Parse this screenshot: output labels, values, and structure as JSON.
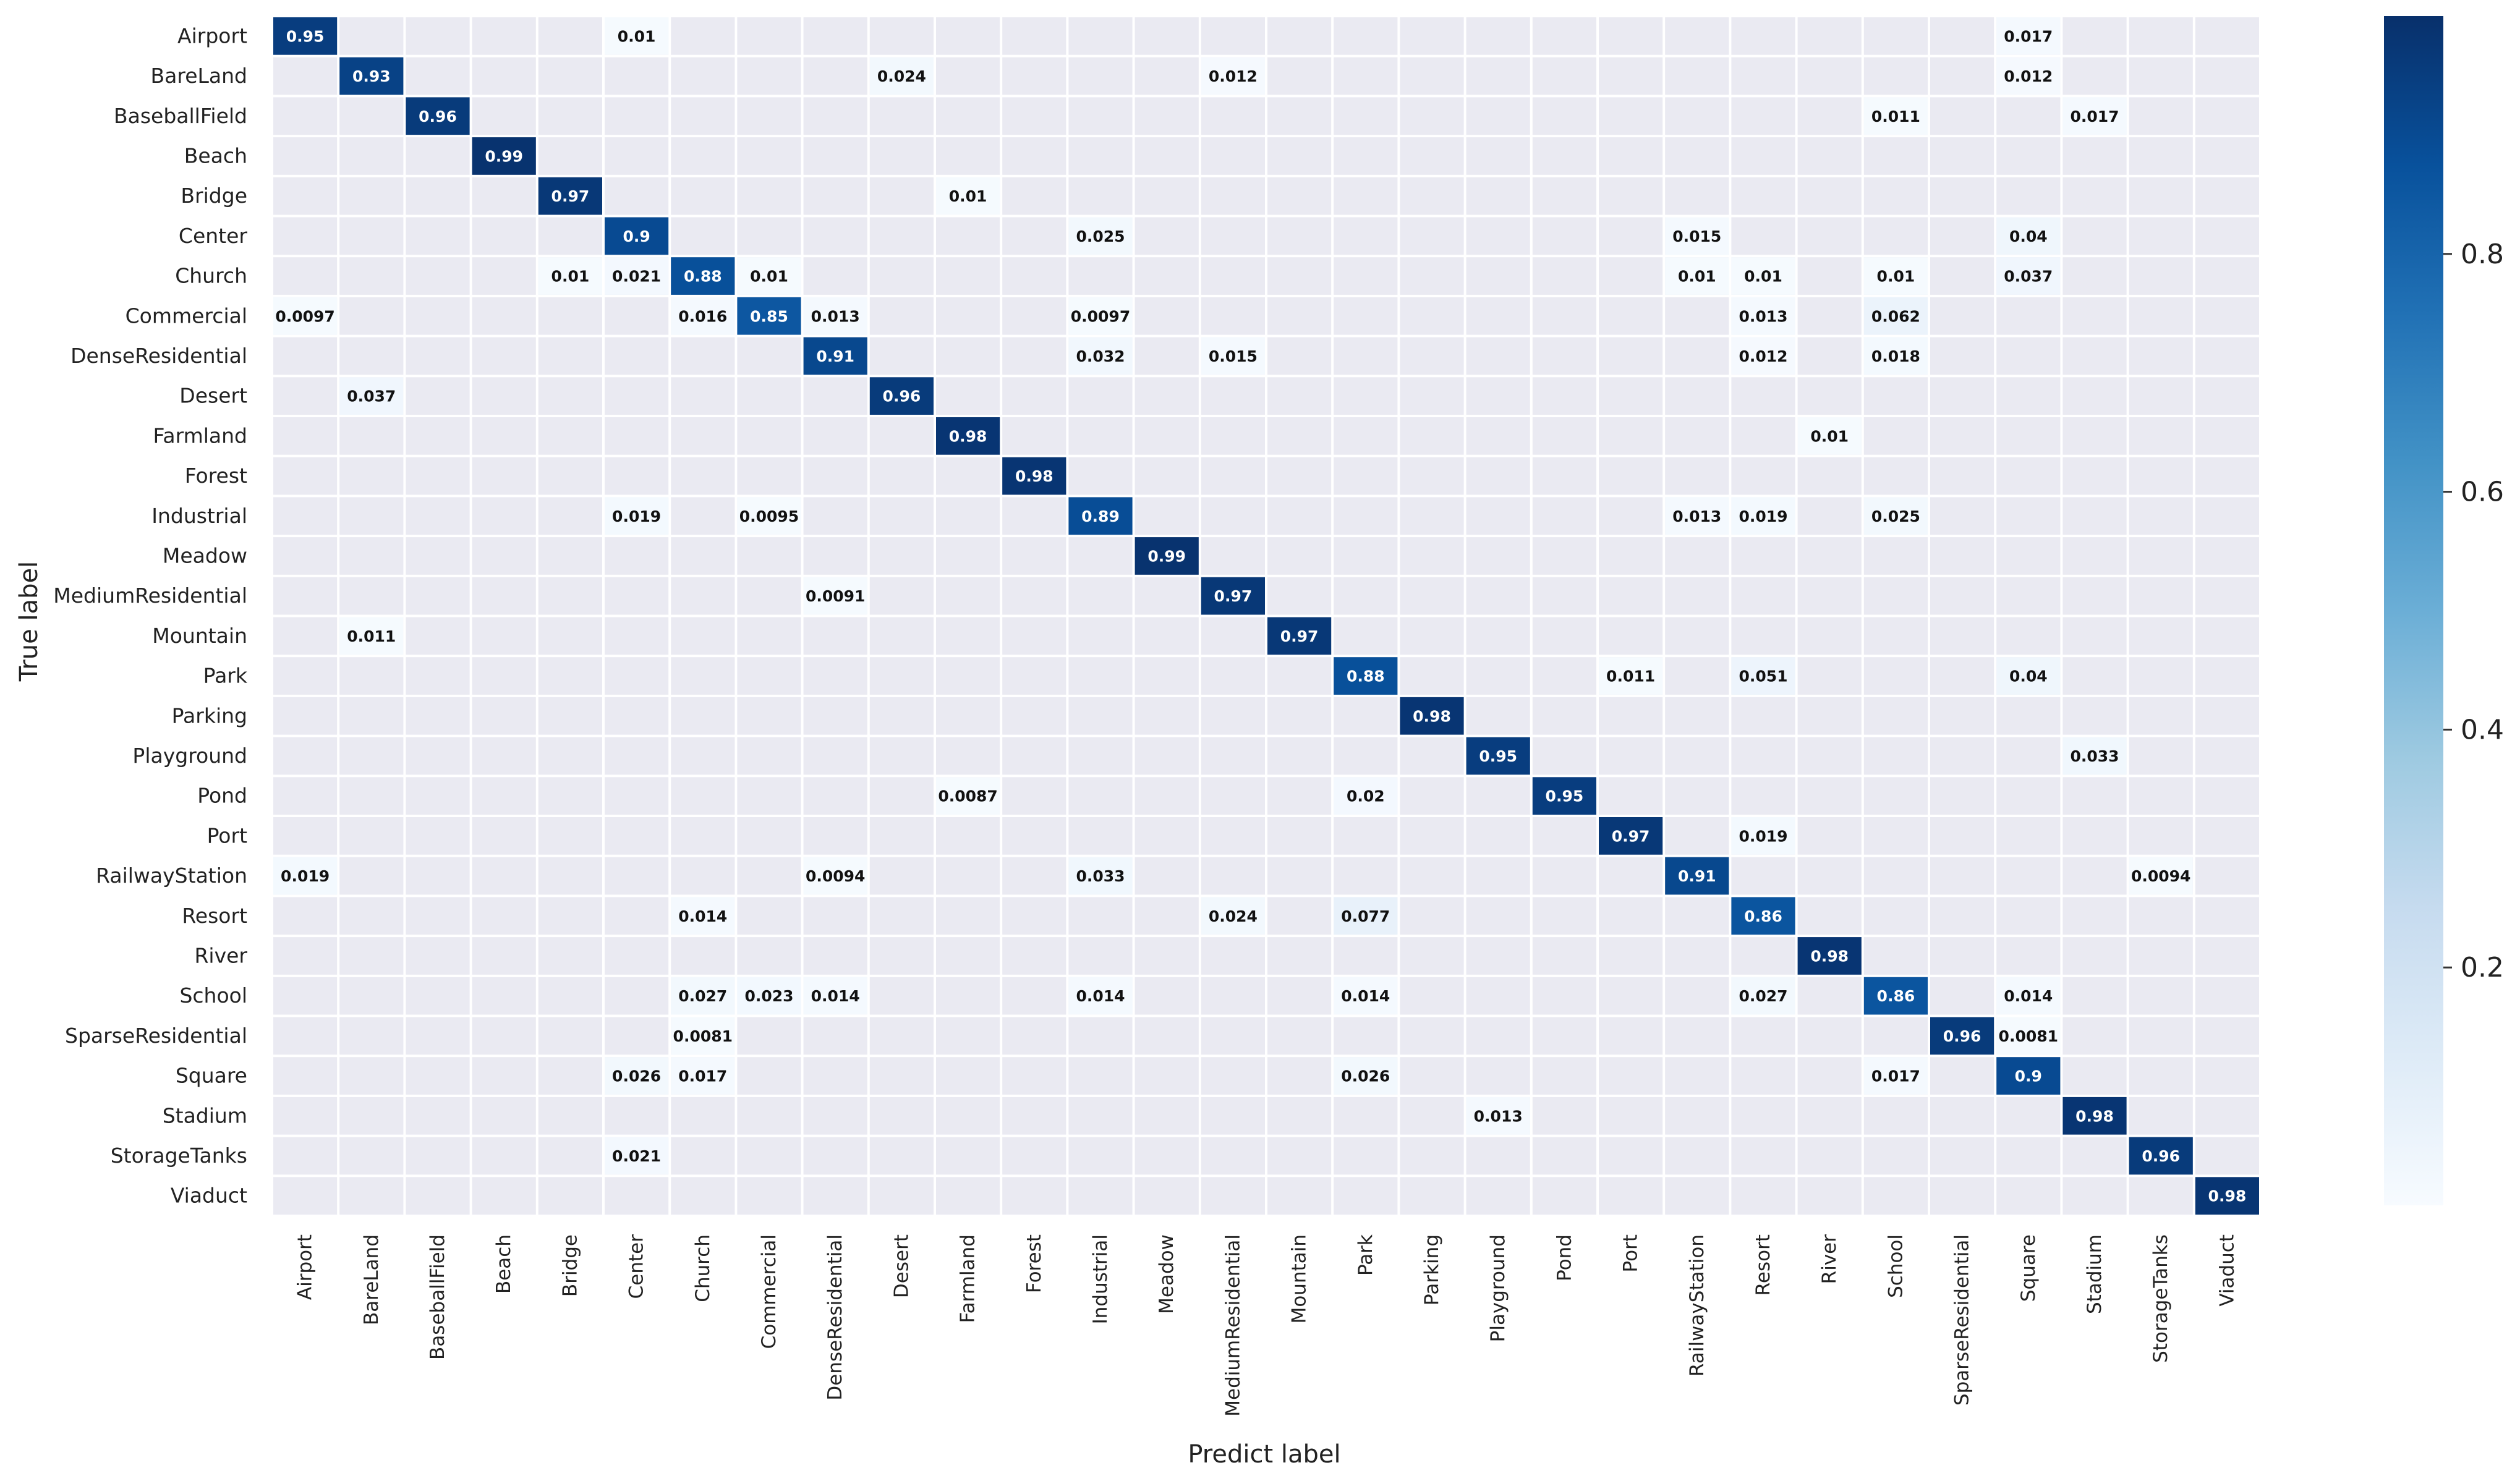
{
  "colors": {
    "background_cell": "#eaeaf2",
    "colormap_low": "#f7fbff",
    "colormap_high": "#08306b"
  },
  "chart_data": {
    "type": "heatmap",
    "title": "",
    "xlabel": "Predict label",
    "ylabel": "True label",
    "labels": [
      "Airport",
      "BareLand",
      "BaseballField",
      "Beach",
      "Bridge",
      "Center",
      "Church",
      "Commercial",
      "DenseResidential",
      "Desert",
      "Farmland",
      "Forest",
      "Industrial",
      "Meadow",
      "MediumResidential",
      "Mountain",
      "Park",
      "Parking",
      "Playground",
      "Pond",
      "Port",
      "RailwayStation",
      "Resort",
      "River",
      "School",
      "SparseResidential",
      "Square",
      "Stadium",
      "StorageTanks",
      "Viaduct"
    ],
    "cells": [
      {
        "row": 0,
        "col": 0,
        "value": 0.95,
        "text": "0.95"
      },
      {
        "row": 0,
        "col": 5,
        "value": 0.01,
        "text": "0.01"
      },
      {
        "row": 0,
        "col": 26,
        "value": 0.017,
        "text": "0.017"
      },
      {
        "row": 1,
        "col": 1,
        "value": 0.93,
        "text": "0.93"
      },
      {
        "row": 1,
        "col": 9,
        "value": 0.024,
        "text": "0.024"
      },
      {
        "row": 1,
        "col": 14,
        "value": 0.012,
        "text": "0.012"
      },
      {
        "row": 1,
        "col": 26,
        "value": 0.012,
        "text": "0.012"
      },
      {
        "row": 2,
        "col": 2,
        "value": 0.96,
        "text": "0.96"
      },
      {
        "row": 2,
        "col": 24,
        "value": 0.011,
        "text": "0.011"
      },
      {
        "row": 2,
        "col": 27,
        "value": 0.017,
        "text": "0.017"
      },
      {
        "row": 3,
        "col": 3,
        "value": 0.99,
        "text": "0.99"
      },
      {
        "row": 4,
        "col": 4,
        "value": 0.97,
        "text": "0.97"
      },
      {
        "row": 4,
        "col": 10,
        "value": 0.01,
        "text": "0.01"
      },
      {
        "row": 5,
        "col": 5,
        "value": 0.9,
        "text": "0.9"
      },
      {
        "row": 5,
        "col": 12,
        "value": 0.025,
        "text": "0.025"
      },
      {
        "row": 5,
        "col": 21,
        "value": 0.015,
        "text": "0.015"
      },
      {
        "row": 5,
        "col": 26,
        "value": 0.04,
        "text": "0.04"
      },
      {
        "row": 6,
        "col": 4,
        "value": 0.01,
        "text": "0.01"
      },
      {
        "row": 6,
        "col": 5,
        "value": 0.021,
        "text": "0.021"
      },
      {
        "row": 6,
        "col": 6,
        "value": 0.88,
        "text": "0.88"
      },
      {
        "row": 6,
        "col": 7,
        "value": 0.01,
        "text": "0.01"
      },
      {
        "row": 6,
        "col": 21,
        "value": 0.01,
        "text": "0.01"
      },
      {
        "row": 6,
        "col": 22,
        "value": 0.01,
        "text": "0.01"
      },
      {
        "row": 6,
        "col": 24,
        "value": 0.01,
        "text": "0.01"
      },
      {
        "row": 6,
        "col": 26,
        "value": 0.037,
        "text": "0.037"
      },
      {
        "row": 7,
        "col": 0,
        "value": 0.0097,
        "text": "0.0097"
      },
      {
        "row": 7,
        "col": 6,
        "value": 0.016,
        "text": "0.016"
      },
      {
        "row": 7,
        "col": 7,
        "value": 0.85,
        "text": "0.85"
      },
      {
        "row": 7,
        "col": 8,
        "value": 0.013,
        "text": "0.013"
      },
      {
        "row": 7,
        "col": 12,
        "value": 0.0097,
        "text": "0.0097"
      },
      {
        "row": 7,
        "col": 22,
        "value": 0.013,
        "text": "0.013"
      },
      {
        "row": 7,
        "col": 24,
        "value": 0.062,
        "text": "0.062"
      },
      {
        "row": 8,
        "col": 8,
        "value": 0.91,
        "text": "0.91"
      },
      {
        "row": 8,
        "col": 12,
        "value": 0.032,
        "text": "0.032"
      },
      {
        "row": 8,
        "col": 14,
        "value": 0.015,
        "text": "0.015"
      },
      {
        "row": 8,
        "col": 22,
        "value": 0.012,
        "text": "0.012"
      },
      {
        "row": 8,
        "col": 24,
        "value": 0.018,
        "text": "0.018"
      },
      {
        "row": 9,
        "col": 1,
        "value": 0.037,
        "text": "0.037"
      },
      {
        "row": 9,
        "col": 9,
        "value": 0.96,
        "text": "0.96"
      },
      {
        "row": 10,
        "col": 10,
        "value": 0.98,
        "text": "0.98"
      },
      {
        "row": 10,
        "col": 23,
        "value": 0.01,
        "text": "0.01"
      },
      {
        "row": 11,
        "col": 11,
        "value": 0.98,
        "text": "0.98"
      },
      {
        "row": 12,
        "col": 5,
        "value": 0.019,
        "text": "0.019"
      },
      {
        "row": 12,
        "col": 7,
        "value": 0.0095,
        "text": "0.0095"
      },
      {
        "row": 12,
        "col": 12,
        "value": 0.89,
        "text": "0.89"
      },
      {
        "row": 12,
        "col": 21,
        "value": 0.013,
        "text": "0.013"
      },
      {
        "row": 12,
        "col": 22,
        "value": 0.019,
        "text": "0.019"
      },
      {
        "row": 12,
        "col": 24,
        "value": 0.025,
        "text": "0.025"
      },
      {
        "row": 13,
        "col": 13,
        "value": 0.99,
        "text": "0.99"
      },
      {
        "row": 14,
        "col": 8,
        "value": 0.0091,
        "text": "0.0091"
      },
      {
        "row": 14,
        "col": 14,
        "value": 0.97,
        "text": "0.97"
      },
      {
        "row": 15,
        "col": 1,
        "value": 0.011,
        "text": "0.011"
      },
      {
        "row": 15,
        "col": 15,
        "value": 0.97,
        "text": "0.97"
      },
      {
        "row": 16,
        "col": 16,
        "value": 0.88,
        "text": "0.88"
      },
      {
        "row": 16,
        "col": 20,
        "value": 0.011,
        "text": "0.011"
      },
      {
        "row": 16,
        "col": 22,
        "value": 0.051,
        "text": "0.051"
      },
      {
        "row": 16,
        "col": 26,
        "value": 0.04,
        "text": "0.04"
      },
      {
        "row": 17,
        "col": 17,
        "value": 0.98,
        "text": "0.98"
      },
      {
        "row": 18,
        "col": 18,
        "value": 0.95,
        "text": "0.95"
      },
      {
        "row": 18,
        "col": 27,
        "value": 0.033,
        "text": "0.033"
      },
      {
        "row": 19,
        "col": 10,
        "value": 0.0087,
        "text": "0.0087"
      },
      {
        "row": 19,
        "col": 16,
        "value": 0.02,
        "text": "0.02"
      },
      {
        "row": 19,
        "col": 19,
        "value": 0.95,
        "text": "0.95"
      },
      {
        "row": 20,
        "col": 20,
        "value": 0.97,
        "text": "0.97"
      },
      {
        "row": 20,
        "col": 22,
        "value": 0.019,
        "text": "0.019"
      },
      {
        "row": 21,
        "col": 0,
        "value": 0.019,
        "text": "0.019"
      },
      {
        "row": 21,
        "col": 8,
        "value": 0.0094,
        "text": "0.0094"
      },
      {
        "row": 21,
        "col": 12,
        "value": 0.033,
        "text": "0.033"
      },
      {
        "row": 21,
        "col": 21,
        "value": 0.91,
        "text": "0.91"
      },
      {
        "row": 21,
        "col": 28,
        "value": 0.0094,
        "text": "0.0094"
      },
      {
        "row": 22,
        "col": 6,
        "value": 0.014,
        "text": "0.014"
      },
      {
        "row": 22,
        "col": 14,
        "value": 0.024,
        "text": "0.024"
      },
      {
        "row": 22,
        "col": 16,
        "value": 0.077,
        "text": "0.077"
      },
      {
        "row": 22,
        "col": 22,
        "value": 0.86,
        "text": "0.86"
      },
      {
        "row": 23,
        "col": 23,
        "value": 0.98,
        "text": "0.98"
      },
      {
        "row": 24,
        "col": 6,
        "value": 0.027,
        "text": "0.027"
      },
      {
        "row": 24,
        "col": 7,
        "value": 0.023,
        "text": "0.023"
      },
      {
        "row": 24,
        "col": 8,
        "value": 0.014,
        "text": "0.014"
      },
      {
        "row": 24,
        "col": 12,
        "value": 0.014,
        "text": "0.014"
      },
      {
        "row": 24,
        "col": 16,
        "value": 0.014,
        "text": "0.014"
      },
      {
        "row": 24,
        "col": 22,
        "value": 0.027,
        "text": "0.027"
      },
      {
        "row": 24,
        "col": 24,
        "value": 0.86,
        "text": "0.86"
      },
      {
        "row": 24,
        "col": 26,
        "value": 0.014,
        "text": "0.014"
      },
      {
        "row": 25,
        "col": 6,
        "value": 0.0081,
        "text": "0.0081"
      },
      {
        "row": 25,
        "col": 25,
        "value": 0.96,
        "text": "0.96"
      },
      {
        "row": 25,
        "col": 26,
        "value": 0.0081,
        "text": "0.0081"
      },
      {
        "row": 26,
        "col": 5,
        "value": 0.026,
        "text": "0.026"
      },
      {
        "row": 26,
        "col": 6,
        "value": 0.017,
        "text": "0.017"
      },
      {
        "row": 26,
        "col": 16,
        "value": 0.026,
        "text": "0.026"
      },
      {
        "row": 26,
        "col": 24,
        "value": 0.017,
        "text": "0.017"
      },
      {
        "row": 26,
        "col": 26,
        "value": 0.9,
        "text": "0.9"
      },
      {
        "row": 27,
        "col": 18,
        "value": 0.013,
        "text": "0.013"
      },
      {
        "row": 27,
        "col": 27,
        "value": 0.98,
        "text": "0.98"
      },
      {
        "row": 28,
        "col": 5,
        "value": 0.021,
        "text": "0.021"
      },
      {
        "row": 28,
        "col": 28,
        "value": 0.96,
        "text": "0.96"
      },
      {
        "row": 29,
        "col": 29,
        "value": 0.98,
        "text": "0.98"
      }
    ],
    "colorbar": {
      "range": [
        0,
        1
      ],
      "ticks": [
        {
          "value": 0.2,
          "label": "0.2"
        },
        {
          "value": 0.4,
          "label": "0.4"
        },
        {
          "value": 0.6,
          "label": "0.6"
        },
        {
          "value": 0.8,
          "label": "0.8"
        }
      ]
    },
    "grid": true,
    "empty_cells_masked": true
  }
}
